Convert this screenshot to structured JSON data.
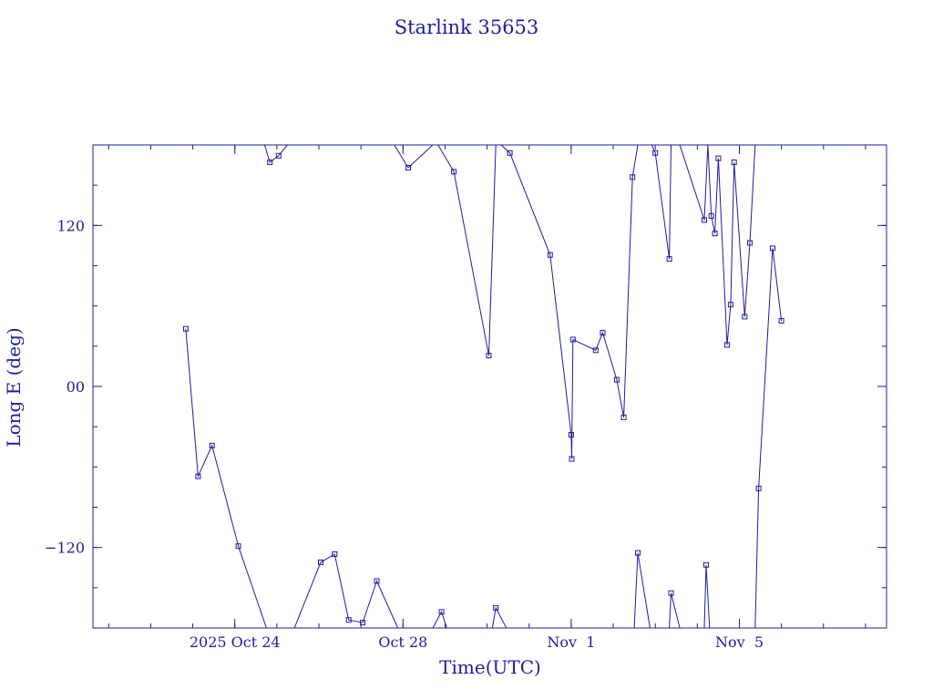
{
  "chart_data": {
    "type": "line",
    "title": "Starlink 35653",
    "xlabel": "Time(UTC)",
    "ylabel": "Long E (deg)",
    "colors": {
      "line": "#1c1c9c",
      "axis": "#1c1c9c",
      "background": "#ffffff"
    },
    "x_range": [
      "2025-10-20T15:00",
      "2025-11-08T12:00"
    ],
    "ylim": [
      -180,
      180
    ],
    "x_ticks": [
      {
        "date": "2025-10-24",
        "label": "2025 Oct 24"
      },
      {
        "date": "2025-10-28",
        "label": "Oct 28"
      },
      {
        "date": "2025-11-01",
        "label": "Nov  1"
      },
      {
        "date": "2025-11-05",
        "label": "Nov  5"
      }
    ],
    "y_ticks": [
      {
        "value": 120,
        "label": "120"
      },
      {
        "value": 0,
        "label": "00"
      },
      {
        "value": -120,
        "label": "−120"
      }
    ],
    "series": [
      {
        "x": [
          "2025-10-22T20:00",
          "2025-10-23T03:00",
          "2025-10-23T11:00",
          "2025-10-24T02:00",
          "2025-10-24T18:00"
        ],
        "y": [
          43,
          -67,
          -44,
          -119,
          -180
        ]
      },
      {
        "x": [
          "2025-10-24T17:00",
          "2025-10-24T20:00",
          "2025-10-25T01:00",
          "2025-10-25T06:00"
        ],
        "y": [
          180,
          167,
          172,
          180
        ]
      },
      {
        "x": [
          "2025-10-25T10:00",
          "2025-10-26T01:00",
          "2025-10-26T09:00",
          "2025-10-26T17:00",
          "2025-10-27T01:00",
          "2025-10-27T09:00",
          "2025-10-27T21:00"
        ],
        "y": [
          -180,
          -131,
          -125,
          -174,
          -176,
          -145,
          -180
        ]
      },
      {
        "x": [
          "2025-10-27T19:00",
          "2025-10-28T03:00",
          "2025-10-28T17:00"
        ],
        "y": [
          180,
          163,
          180
        ]
      },
      {
        "x": [
          "2025-10-28T20:00",
          "2025-10-29T05:00",
          "2025-10-30T01:00",
          "2025-10-30T05:00"
        ],
        "y": [
          180,
          160,
          23,
          180
        ]
      },
      {
        "x": [
          "2025-10-28T17:00",
          "2025-10-28T22:00",
          "2025-10-29T01:00"
        ],
        "y": [
          -180,
          -168,
          -180
        ]
      },
      {
        "x": [
          "2025-10-30T03:00",
          "2025-10-30T05:00",
          "2025-10-30T11:00"
        ],
        "y": [
          -180,
          -165,
          -180
        ]
      },
      {
        "x": [
          "2025-10-30T08:00",
          "2025-10-30T13:00",
          "2025-10-31T12:00",
          "2025-11-01T00:00",
          "2025-11-01T00:20",
          "2025-11-01T01:00",
          "2025-11-01T14:00",
          "2025-11-01T18:00",
          "2025-11-02T02:00",
          "2025-11-02T06:00",
          "2025-11-02T11:00",
          "2025-11-02T14:00"
        ],
        "y": [
          180,
          174,
          98,
          -36,
          -54,
          35,
          27,
          40,
          5,
          -23,
          156,
          180
        ]
      },
      {
        "x": [
          "2025-11-02T12:00",
          "2025-11-02T14:00",
          "2025-11-02T21:00"
        ],
        "y": [
          -180,
          -124,
          -180
        ]
      },
      {
        "x": [
          "2025-11-02T22:00",
          "2025-11-03T00:00",
          "2025-11-03T08:00",
          "2025-11-03T09:00",
          "2025-11-03T14:00"
        ],
        "y": [
          180,
          174,
          95,
          180,
          180
        ]
      },
      {
        "x": [
          "2025-11-03T08:00",
          "2025-11-03T09:00",
          "2025-11-03T14:00"
        ],
        "y": [
          -180,
          -154,
          -180
        ]
      },
      {
        "x": [
          "2025-11-03T14:00",
          "2025-11-04T04:00",
          "2025-11-04T06:00"
        ],
        "y": [
          180,
          124,
          180
        ]
      },
      {
        "x": [
          "2025-11-04T04:00",
          "2025-11-04T05:00",
          "2025-11-04T07:00"
        ],
        "y": [
          -180,
          -133,
          -180
        ]
      },
      {
        "x": [
          "2025-11-04T06:00",
          "2025-11-04T08:00",
          "2025-11-04T10:00",
          "2025-11-04T12:00",
          "2025-11-04T17:00",
          "2025-11-04T19:00",
          "2025-11-04T21:00",
          "2025-11-05T03:00",
          "2025-11-05T06:00",
          "2025-11-05T09:00"
        ],
        "y": [
          180,
          127,
          114,
          170,
          31,
          61,
          167,
          52,
          107,
          180
        ]
      },
      {
        "x": [
          "2025-11-05T09:00",
          "2025-11-05T11:00",
          "2025-11-05T19:00",
          "2025-11-06T00:00"
        ],
        "y": [
          -180,
          -76,
          103,
          49
        ]
      }
    ]
  }
}
